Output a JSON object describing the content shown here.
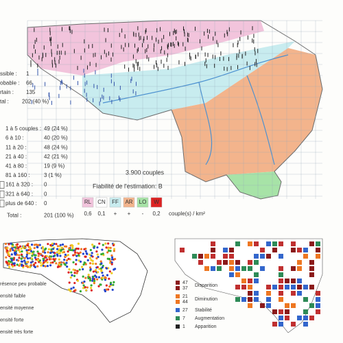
{
  "status_legend": [
    {
      "label": "ssible :",
      "value": "1"
    },
    {
      "label": "obable :",
      "value": "66"
    },
    {
      "label": "rtain :",
      "value": "135"
    },
    {
      "label": "tal :",
      "value": "202 (40 %)"
    }
  ],
  "abundance_legend": [
    {
      "label": "1 à 5 couples :",
      "value": "49 (24 %)"
    },
    {
      "label": "6 à 10 :",
      "value": "40 (20 %)"
    },
    {
      "label": "11 à 20 :",
      "value": "48 (24 %)"
    },
    {
      "label": "21 à 40 :",
      "value": "42 (21 %)"
    },
    {
      "label": "41 à 80 :",
      "value": "19 (9 %)"
    },
    {
      "label": "81 à 160 :",
      "value": "3 (1 %)"
    },
    {
      "label": "161 à 320 :",
      "value": "0"
    },
    {
      "label": "321 à 640 :",
      "value": "0"
    },
    {
      "label": "plus de 640 :",
      "value": "0"
    },
    {
      "label": "Total :",
      "value": "201 (100 %)"
    }
  ],
  "population": "3.900 couples",
  "reliability": "Fiabilité de l'estimation: B",
  "regions": [
    {
      "code": "RL",
      "density": "0,6"
    },
    {
      "code": "CN",
      "density": "0,1"
    },
    {
      "code": "FF",
      "density": "+"
    },
    {
      "code": "AR",
      "density": "+"
    },
    {
      "code": "LO",
      "density": "-"
    },
    {
      "code": "W",
      "density": "0,2"
    }
  ],
  "density_unit": "couple(s) / km²",
  "density_map_legend": [
    "résence peu probable",
    "ensité faible",
    "ensité moyenne",
    "ensité forte",
    "ensité très forte"
  ],
  "trend_legend": [
    {
      "counts": [
        "47",
        "37"
      ],
      "label": "Disparition"
    },
    {
      "counts": [
        "21",
        "44"
      ],
      "label": "Diminution"
    },
    {
      "counts": [
        "27"
      ],
      "label": "Stabilité"
    },
    {
      "counts": [
        "7"
      ],
      "label": "Augmentation"
    },
    {
      "counts": [
        "1"
      ],
      "label": "Apparition"
    }
  ]
}
